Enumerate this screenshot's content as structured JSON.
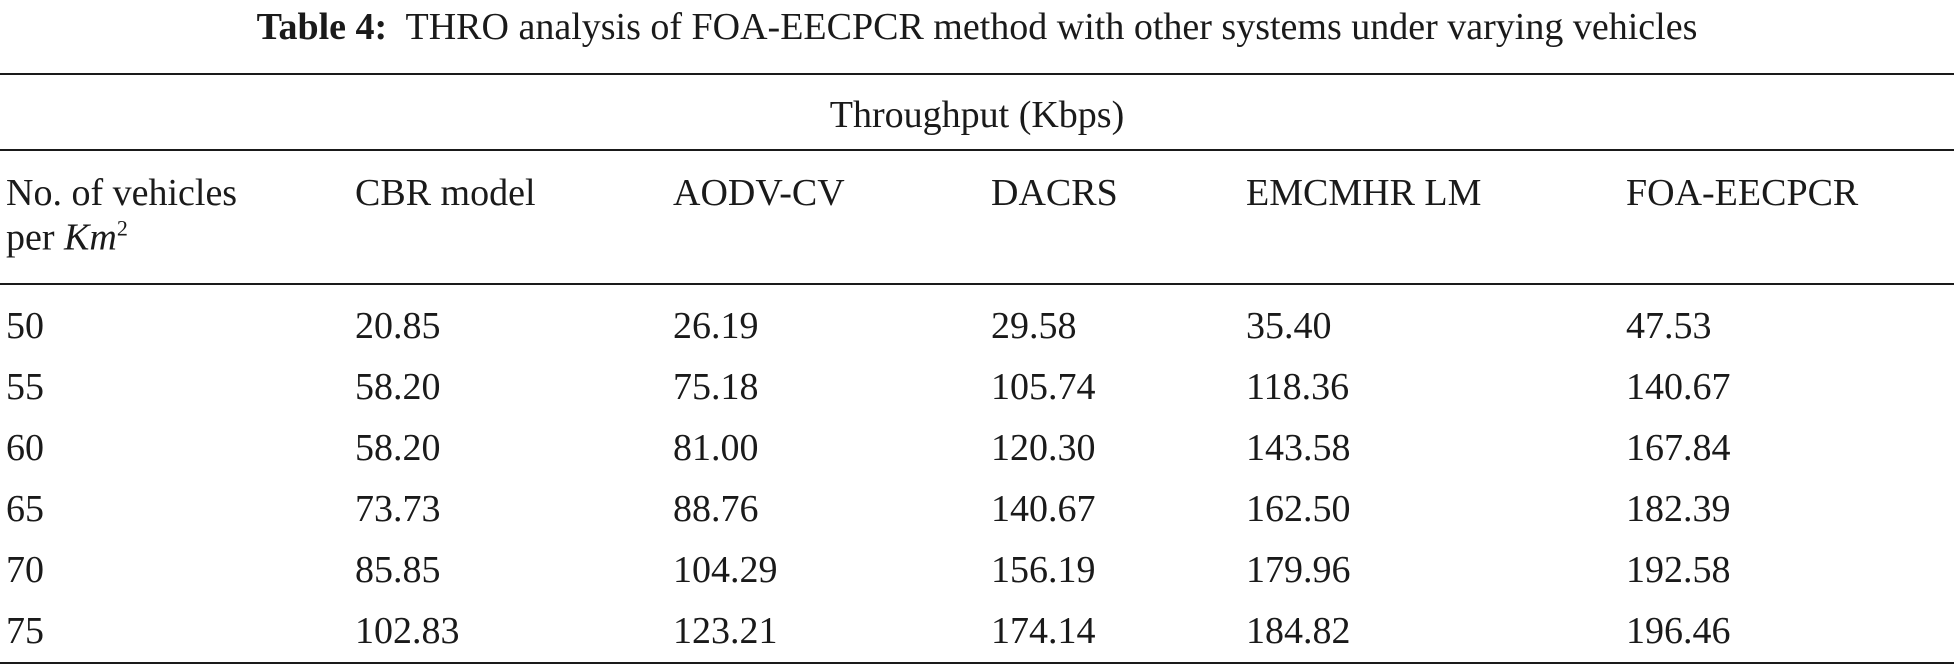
{
  "table": {
    "label": "Table 4:",
    "title": "THRO analysis of FOA-EECPCR method with other systems under varying vehicles",
    "spanner": "Throughput (Kbps)",
    "first_header": {
      "line1": "No. of vehicles",
      "line2": "per ",
      "unit": "Km",
      "exponent": "2"
    },
    "headers": [
      "CBR model",
      "AODV-CV",
      "DACRS",
      "EMCMHR LM",
      "FOA-EECPCR"
    ],
    "rows": [
      [
        "50",
        "20.85",
        "26.19",
        "29.58",
        "35.40",
        "47.53"
      ],
      [
        "55",
        "58.20",
        "75.18",
        "105.74",
        "118.36",
        "140.67"
      ],
      [
        "60",
        "58.20",
        "81.00",
        "120.30",
        "143.58",
        "167.84"
      ],
      [
        "65",
        "73.73",
        "88.76",
        "140.67",
        "162.50",
        "182.39"
      ],
      [
        "70",
        "85.85",
        "104.29",
        "156.19",
        "179.96",
        "192.58"
      ],
      [
        "75",
        "102.83",
        "123.21",
        "174.14",
        "184.82",
        "196.46"
      ]
    ]
  }
}
